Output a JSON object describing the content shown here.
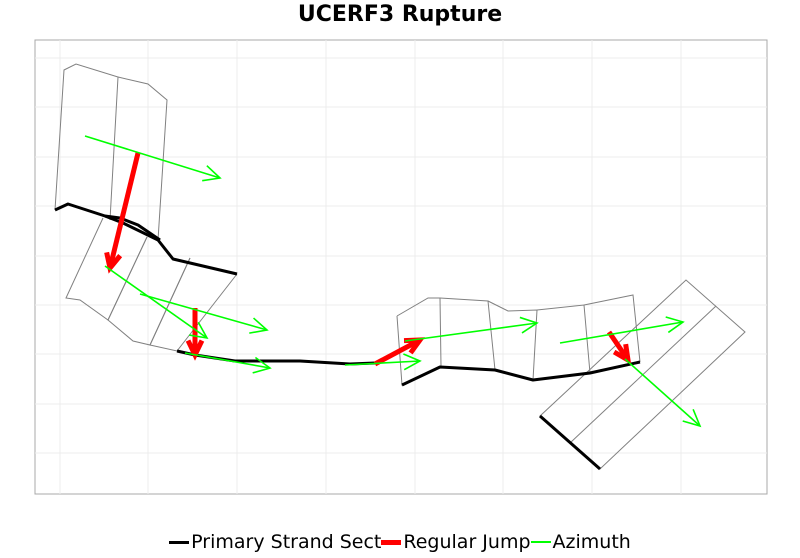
{
  "title": "UCERF3 Rupture",
  "legend": [
    {
      "label": "Primary Strand Sect",
      "color": "#000000"
    },
    {
      "label": "Regular Jump",
      "color": "#ff0000"
    },
    {
      "label": "Azimuth",
      "color": "#00ff00"
    }
  ],
  "chart_data": {
    "type": "map-lines",
    "title": "UCERF3 Rupture",
    "grid": true,
    "outline_color": "#808080",
    "series": [
      {
        "name": "Primary Strand Sect",
        "color": "#000000",
        "lines": [
          [
            [
              55,
              210
            ],
            [
              68,
              204
            ],
            [
              105,
              216
            ],
            [
              123,
              223
            ],
            [
              158,
              240
            ],
            [
              173,
              259
            ],
            [
              237,
              274
            ]
          ],
          [
            [
              105,
              216
            ],
            [
              120,
              218
            ],
            [
              138,
              225
            ],
            [
              160,
              240
            ]
          ],
          [
            [
              177,
              351
            ],
            [
              195,
              355
            ],
            [
              235,
              361
            ],
            [
              300,
              361
            ],
            [
              350,
              364
            ],
            [
              375,
              363
            ]
          ],
          [
            [
              402,
              385
            ],
            [
              440,
              367
            ],
            [
              495,
              370
            ],
            [
              533,
              380
            ],
            [
              590,
              373
            ],
            [
              640,
              362
            ]
          ],
          [
            [
              540,
              416
            ],
            [
              600,
              469
            ]
          ]
        ]
      },
      {
        "name": "Regular Jump",
        "color": "#ff0000",
        "arrows": [
          [
            [
              138,
              153
            ],
            [
              110,
              268
            ]
          ],
          [
            [
              195,
              308
            ],
            [
              195,
              355
            ]
          ],
          [
            [
              375,
              364
            ],
            [
              420,
              340
            ]
          ],
          [
            [
              609,
              332
            ],
            [
              628,
              360
            ]
          ]
        ]
      },
      {
        "name": "Azimuth",
        "color": "#00ff00",
        "arrows": [
          [
            [
              85,
              136
            ],
            [
              220,
              178
            ]
          ],
          [
            [
              105,
              266
            ],
            [
              207,
              338
            ]
          ],
          [
            [
              140,
              294
            ],
            [
              267,
              330
            ]
          ],
          [
            [
              185,
              353
            ],
            [
              270,
              368
            ]
          ],
          [
            [
              345,
              365
            ],
            [
              420,
              361
            ]
          ],
          [
            [
              405,
              341
            ],
            [
              537,
              323
            ]
          ],
          [
            [
              560,
              343
            ],
            [
              683,
              322
            ]
          ],
          [
            [
              625,
              359
            ],
            [
              700,
              426
            ]
          ]
        ]
      }
    ]
  }
}
